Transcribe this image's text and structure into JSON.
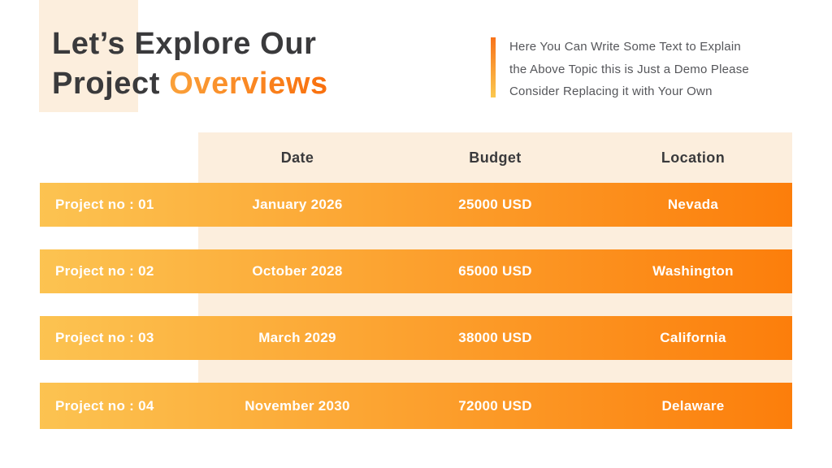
{
  "header": {
    "title_line1": "Let’s Explore Our",
    "title_line2_dark": "Project ",
    "title_line2_accent": "Overviews",
    "description_lines": [
      "Here You Can Write Some Text to Explain",
      "the Above Topic this is Just a Demo Please",
      "Consider Replacing it with Your Own"
    ]
  },
  "table": {
    "columns": [
      "Date",
      "Budget",
      "Location"
    ],
    "rows": [
      {
        "label": "Project no : 01",
        "date": "January 2026",
        "budget": "25000 USD",
        "location": "Nevada"
      },
      {
        "label": "Project no : 02",
        "date": "October 2028",
        "budget": "65000 USD",
        "location": "Washington"
      },
      {
        "label": "Project no : 03",
        "date": "March 2029",
        "budget": "38000 USD",
        "location": "California"
      },
      {
        "label": "Project no : 04",
        "date": "November 2030",
        "budget": "72000 USD",
        "location": "Delaware"
      }
    ]
  },
  "colors": {
    "cream": "#FCEEDD",
    "title_dark": "#3A3A3C",
    "desc_gray": "#55565A",
    "accent_start": "#FAA13A",
    "accent_end": "#F96F0D",
    "bar_top": "#F8731A",
    "bar_bottom": "#FBC84F",
    "row_grad_start": "#FCC351",
    "row_grad_end": "#FC7E0B",
    "row_text": "#FFFFFF"
  }
}
